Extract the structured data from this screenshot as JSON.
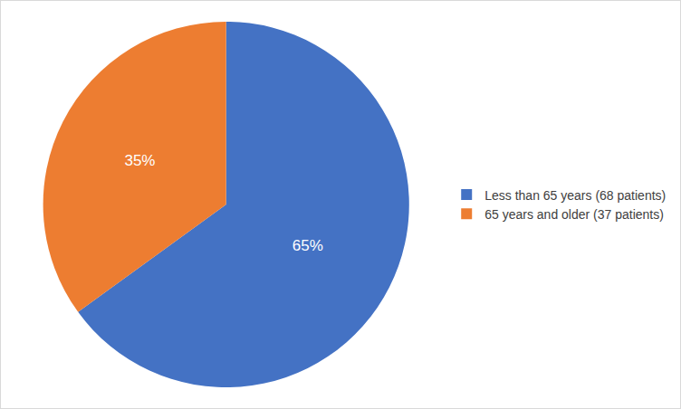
{
  "chart_data": {
    "type": "pie",
    "categories": [
      "Less than 65 years (68 patients)",
      "65 years and older (37 patients)"
    ],
    "values": [
      65,
      35
    ],
    "value_labels": [
      "65%",
      "35%"
    ],
    "colors": [
      "#4472c4",
      "#ed7d31"
    ],
    "data_labels": true,
    "legend": "right"
  }
}
